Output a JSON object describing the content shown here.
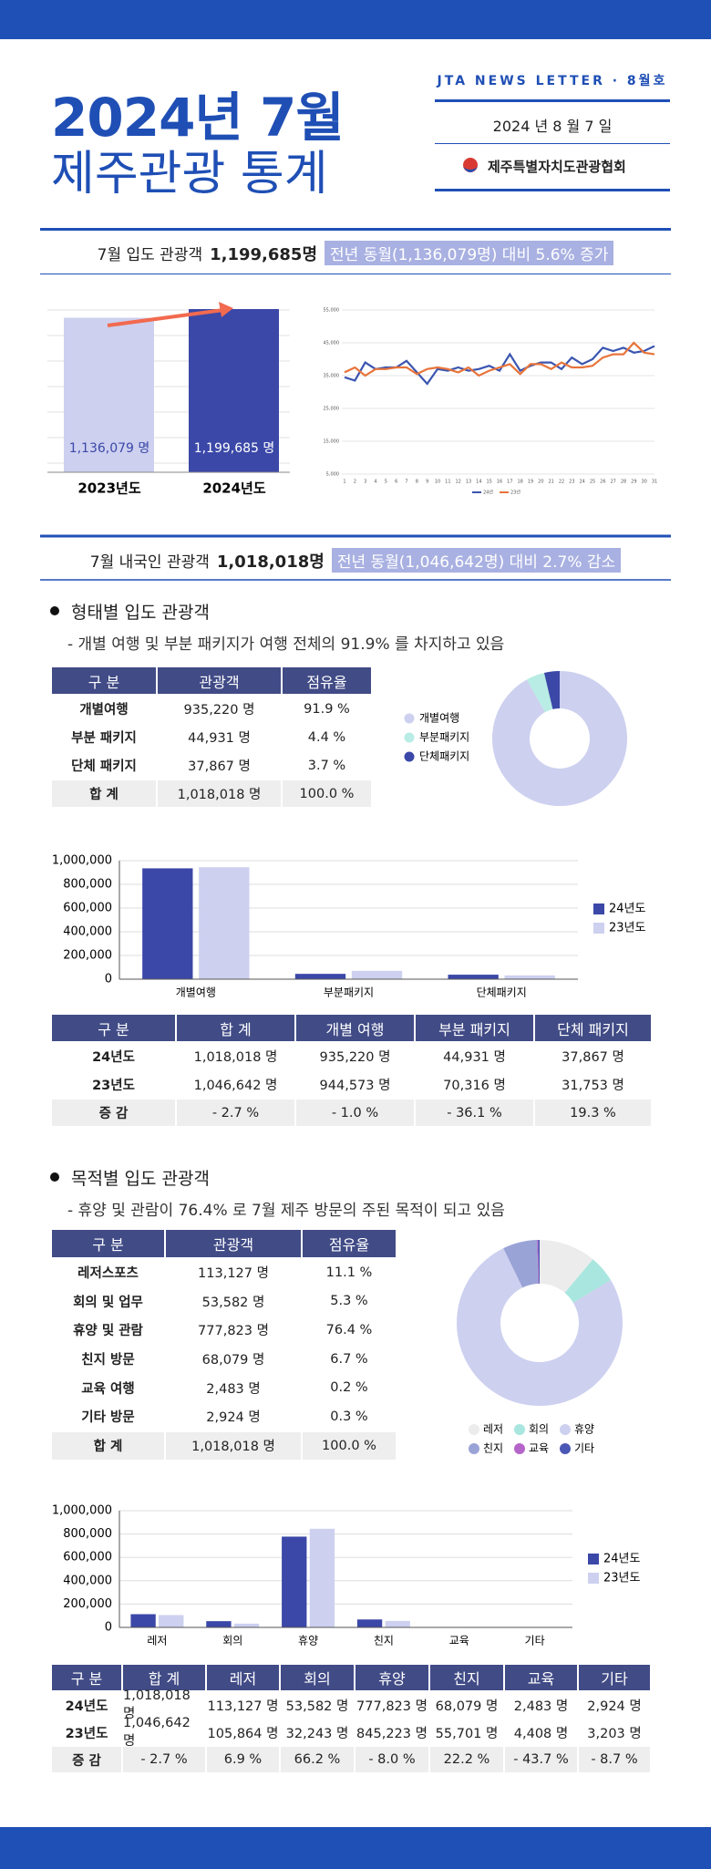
{
  "header": {
    "title_line1": "2024년 7월",
    "title_line2": "제주관광 통계",
    "newsletter": "JTA NEWS LETTER · 8월호",
    "date": "2024 년 8 월 7 일",
    "organization": "제주특별자치도관광협회"
  },
  "summary_visitors": {
    "label": "7월 입도 관광객",
    "value": "1,199,685명",
    "comparison": "전년 동월(1,136,079명) 대비 5.6% 증가"
  },
  "yearly_chart": {
    "type": "bar",
    "categories": [
      "2023년도",
      "2024년도"
    ],
    "values": [
      1136079,
      1199685
    ],
    "value_labels": [
      "1,136,079 명",
      "1,199,685 명"
    ],
    "colors": [
      "#cdd0ef",
      "#3b48a8"
    ]
  },
  "daily_chart": {
    "type": "line",
    "x": [
      1,
      2,
      3,
      4,
      5,
      6,
      7,
      8,
      9,
      10,
      11,
      12,
      13,
      14,
      15,
      16,
      17,
      18,
      19,
      20,
      21,
      22,
      23,
      24,
      25,
      26,
      27,
      28,
      29,
      30,
      31
    ],
    "series": [
      {
        "name": "24년",
        "color": "#3a55b0",
        "values": [
          34500,
          33500,
          39000,
          37000,
          37500,
          37500,
          39500,
          36000,
          32500,
          37000,
          36500,
          37500,
          36500,
          37000,
          38000,
          36500,
          41500,
          36500,
          38000,
          39000,
          39000,
          37000,
          40500,
          38500,
          40000,
          43500,
          42500,
          43500,
          42000,
          42500,
          44000
        ]
      },
      {
        "name": "23년",
        "color": "#e8743b",
        "values": [
          36000,
          37500,
          35000,
          37000,
          37000,
          37500,
          37500,
          35500,
          37000,
          37500,
          37000,
          36000,
          37500,
          35000,
          36500,
          37500,
          38500,
          35500,
          38500,
          38500,
          37000,
          39000,
          37500,
          37500,
          38000,
          40500,
          41500,
          41500,
          45000,
          42000,
          41500
        ]
      }
    ],
    "ylim": [
      5000,
      55000
    ],
    "yticks": [
      {
        "value": 5000,
        "label": "5,000"
      },
      {
        "value": 15000,
        "label": "15,000"
      },
      {
        "value": 25000,
        "label": "25,000"
      },
      {
        "value": 35000,
        "label": "35,000"
      },
      {
        "value": 45000,
        "label": "45,000"
      },
      {
        "value": 55000,
        "label": "55,000"
      }
    ]
  },
  "summary_domestic": {
    "label": "7월 내국인 관광객",
    "value": "1,018,018명",
    "comparison": "전년 동월(1,046,642명) 대비 2.7% 감소"
  },
  "type_section": {
    "heading": "형태별 입도 관광객",
    "note": "- 개별 여행 및 부분 패키지가 여행 전체의 91.9% 를 차지하고 있음",
    "table": {
      "header": [
        "구 분",
        "관광객",
        "점유율"
      ],
      "rows": [
        [
          "개별여행",
          "935,220 명",
          "91.9 %"
        ],
        [
          "부분 패키지",
          "44,931 명",
          "4.4 %"
        ],
        [
          "단체 패키지",
          "37,867 명",
          "3.7 %"
        ],
        [
          "합 계",
          "1,018,018 명",
          "100.0 %"
        ]
      ]
    },
    "donut": {
      "type": "pie",
      "labels": [
        "개별여행",
        "부분패키지",
        "단체패키지"
      ],
      "values": [
        91.9,
        4.4,
        3.7
      ],
      "colors": [
        "#cdd0ef",
        "#b8ece4",
        "#3b48a8"
      ]
    },
    "chart": {
      "type": "bar",
      "categories": [
        "개별여행",
        "부분패키지",
        "단체패키지"
      ],
      "series": [
        {
          "name": "24년도",
          "color": "#3b48a8",
          "values": [
            935220,
            44931,
            37867
          ]
        },
        {
          "name": "23년도",
          "color": "#cdd0ef",
          "values": [
            944573,
            70316,
            31753
          ]
        }
      ],
      "ylim": [
        0,
        1000000
      ],
      "yticks": [
        0,
        {
          "value": 200000,
          "label": "200,000"
        },
        {
          "value": 400000,
          "label": "400,000"
        },
        {
          "value": 600000,
          "label": "600,000"
        },
        {
          "value": 800000,
          "label": "800,000"
        },
        {
          "value": 1000000,
          "label": "1,000,000"
        }
      ]
    },
    "comparison_table": {
      "header": [
        "구 분",
        "합 계",
        "개별 여행",
        "부분 패키지",
        "단체 패키지"
      ],
      "rows": [
        [
          "24년도",
          "1,018,018 명",
          "935,220 명",
          "44,931 명",
          "37,867 명"
        ],
        [
          "23년도",
          "1,046,642 명",
          "944,573 명",
          "70,316 명",
          "31,753 명"
        ],
        [
          "증 감",
          "- 2.7 %",
          "- 1.0 %",
          "- 36.1 %",
          "19.3 %"
        ]
      ]
    }
  },
  "purpose_section": {
    "heading": "목적별 입도 관광객",
    "note": "- 휴양 및 관람이 76.4% 로 7월 제주 방문의 주된 목적이 되고 있음",
    "table": {
      "header": [
        "구 분",
        "관광객",
        "점유율"
      ],
      "rows": [
        [
          "레저스포츠",
          "113,127 명",
          "11.1 %"
        ],
        [
          "회의 및 업무",
          "53,582 명",
          "5.3 %"
        ],
        [
          "휴양 및 관람",
          "777,823 명",
          "76.4 %"
        ],
        [
          "친지 방문",
          "68,079 명",
          "6.7 %"
        ],
        [
          "교육 여행",
          "2,483 명",
          "0.2 %"
        ],
        [
          "기타 방문",
          "2,924 명",
          "0.3 %"
        ],
        [
          "합 계",
          "1,018,018 명",
          "100.0 %"
        ]
      ]
    },
    "donut": {
      "type": "pie",
      "labels": [
        "레저",
        "회의",
        "휴양",
        "친지",
        "교육",
        "기타"
      ],
      "values": [
        11.1,
        5.3,
        76.4,
        6.7,
        0.2,
        0.3
      ],
      "colors": [
        "#ececec",
        "#a8e6df",
        "#cdd0ef",
        "#9aa3d6",
        "#b565c9",
        "#4a57b5"
      ]
    },
    "chart": {
      "type": "bar",
      "categories": [
        "레저",
        "회의",
        "휴양",
        "친지",
        "교육",
        "기타"
      ],
      "series": [
        {
          "name": "24년도",
          "color": "#3b48a8",
          "values": [
            113127,
            53582,
            777823,
            68079,
            2483,
            2924
          ]
        },
        {
          "name": "23년도",
          "color": "#cdd0ef",
          "values": [
            105864,
            32243,
            845223,
            55701,
            4408,
            3203
          ]
        }
      ],
      "ylim": [
        0,
        1000000
      ],
      "yticks": [
        0,
        {
          "value": 200000,
          "label": "200,000"
        },
        {
          "value": 400000,
          "label": "400,000"
        },
        {
          "value": 600000,
          "label": "600,000"
        },
        {
          "value": 800000,
          "label": "800,000"
        },
        {
          "value": 1000000,
          "label": "1,000,000"
        }
      ]
    },
    "comparison_table": {
      "header": [
        "구 분",
        "합 계",
        "레저",
        "회의",
        "휴양",
        "친지",
        "교육",
        "기타"
      ],
      "rows": [
        [
          "24년도",
          "1,018,018 명",
          "113,127 명",
          "53,582 명",
          "777,823 명",
          "68,079 명",
          "2,483 명",
          "2,924 명"
        ],
        [
          "23년도",
          "1,046,642 명",
          "105,864 명",
          "32,243 명",
          "845,223 명",
          "55,701 명",
          "4,408 명",
          "3,203 명"
        ],
        [
          "증 감",
          "- 2.7 %",
          "6.9 %",
          "66.2 %",
          "- 8.0 %",
          "22.2 %",
          "- 43.7 %",
          "- 8.7 %"
        ]
      ]
    }
  }
}
